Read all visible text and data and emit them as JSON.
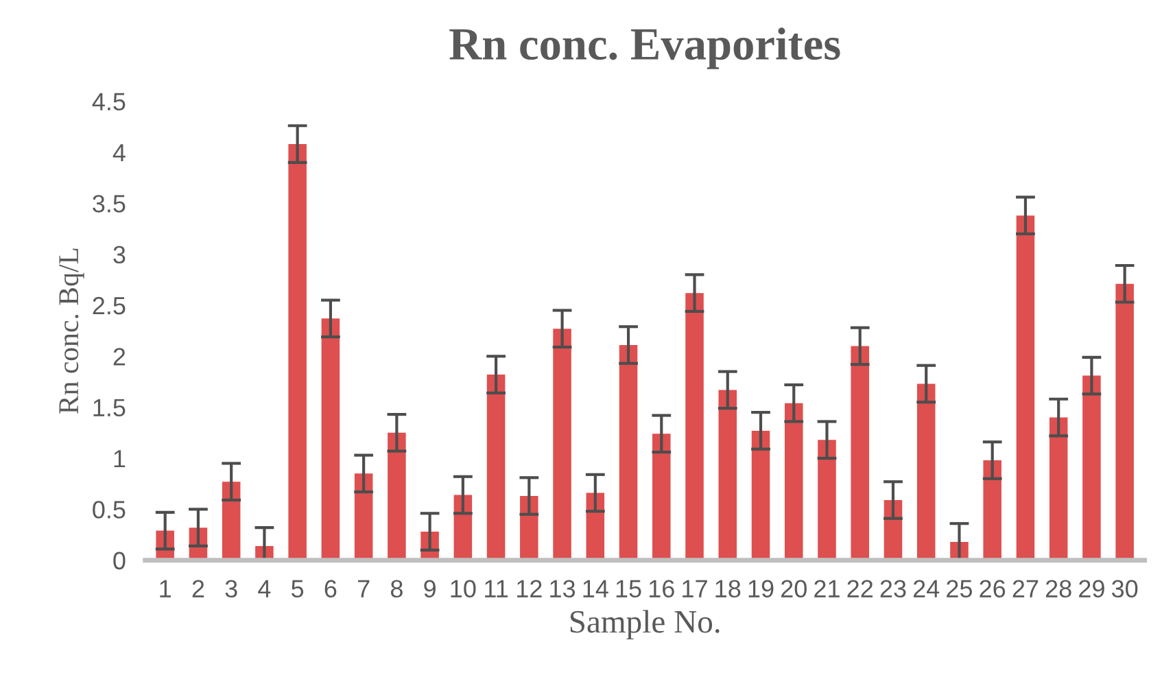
{
  "chart_data": {
    "type": "bar",
    "title": "Rn conc. Evaporites",
    "xlabel": "Sample No.",
    "ylabel": "Rn conc. Bq/L",
    "categories": [
      "1",
      "2",
      "3",
      "4",
      "5",
      "6",
      "7",
      "8",
      "9",
      "10",
      "11",
      "12",
      "13",
      "14",
      "15",
      "16",
      "17",
      "18",
      "19",
      "20",
      "21",
      "22",
      "23",
      "24",
      "25",
      "26",
      "27",
      "28",
      "29",
      "30"
    ],
    "values": [
      0.29,
      0.32,
      0.77,
      0.14,
      4.08,
      2.37,
      0.85,
      1.25,
      0.28,
      0.64,
      1.82,
      0.63,
      2.27,
      0.66,
      2.11,
      1.24,
      2.62,
      1.67,
      1.27,
      1.54,
      1.18,
      2.1,
      0.59,
      1.73,
      0.18,
      0.98,
      3.38,
      1.4,
      1.81,
      2.71
    ],
    "errors": [
      0.18,
      0.18,
      0.18,
      0.18,
      0.18,
      0.18,
      0.18,
      0.18,
      0.18,
      0.18,
      0.18,
      0.18,
      0.18,
      0.18,
      0.18,
      0.18,
      0.18,
      0.18,
      0.18,
      0.18,
      0.18,
      0.18,
      0.18,
      0.18,
      0.18,
      0.18,
      0.18,
      0.18,
      0.18,
      0.18
    ],
    "color": "#de4f4f",
    "ylim": [
      0,
      4.5
    ],
    "yticks": [
      0,
      0.5,
      1,
      1.5,
      2,
      2.5,
      3,
      3.5,
      4,
      4.5
    ],
    "grid": false,
    "legend": false
  }
}
